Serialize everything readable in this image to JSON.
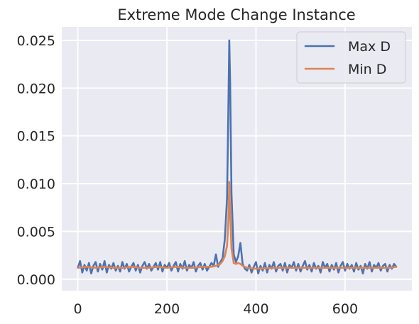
{
  "chart_data": {
    "type": "line",
    "title": "Extreme Mode Change Instance",
    "xlabel": "",
    "ylabel": "",
    "xlim": [
      -36,
      750
    ],
    "ylim": [
      -0.0012,
      0.0264
    ],
    "xticks": [
      0,
      200,
      400,
      600
    ],
    "xtick_labels": [
      "0",
      "200",
      "400",
      "600"
    ],
    "yticks": [
      0.0,
      0.005,
      0.01,
      0.015,
      0.02,
      0.025
    ],
    "ytick_labels": [
      "0.000",
      "0.005",
      "0.010",
      "0.015",
      "0.020",
      "0.025"
    ],
    "grid": true,
    "legend": "top-right",
    "background": "#eaeaf2",
    "grid_color": "#ffffff",
    "series": [
      {
        "name": "Max D",
        "color": "#4c72b0",
        "x": [
          0,
          5,
          10,
          15,
          20,
          25,
          30,
          35,
          40,
          45,
          50,
          55,
          60,
          65,
          70,
          75,
          80,
          85,
          90,
          95,
          100,
          105,
          110,
          115,
          120,
          125,
          130,
          135,
          140,
          145,
          150,
          155,
          160,
          165,
          170,
          175,
          180,
          185,
          190,
          195,
          200,
          205,
          210,
          215,
          220,
          225,
          230,
          235,
          240,
          245,
          250,
          255,
          260,
          265,
          270,
          275,
          280,
          285,
          290,
          295,
          300,
          305,
          310,
          315,
          320,
          325,
          330,
          335,
          338,
          340,
          342,
          345,
          350,
          355,
          360,
          365,
          370,
          375,
          380,
          385,
          390,
          395,
          400,
          405,
          410,
          415,
          420,
          425,
          430,
          435,
          440,
          445,
          450,
          455,
          460,
          465,
          470,
          475,
          480,
          485,
          490,
          495,
          500,
          505,
          510,
          515,
          520,
          525,
          530,
          535,
          540,
          545,
          550,
          555,
          560,
          565,
          570,
          575,
          580,
          585,
          590,
          595,
          600,
          605,
          610,
          615,
          620,
          625,
          630,
          635,
          640,
          645,
          650,
          655,
          660,
          665,
          670,
          675,
          680,
          685,
          690,
          695,
          700,
          705,
          710,
          715
        ],
        "y": [
          0.0012,
          0.0019,
          0.0007,
          0.0015,
          0.0009,
          0.0017,
          0.0006,
          0.0014,
          0.0018,
          0.0008,
          0.0016,
          0.001,
          0.0019,
          0.0007,
          0.0015,
          0.0011,
          0.0017,
          0.0009,
          0.0014,
          0.0008,
          0.0018,
          0.0011,
          0.0016,
          0.0008,
          0.0013,
          0.0017,
          0.0009,
          0.0015,
          0.0007,
          0.0014,
          0.0018,
          0.0011,
          0.0016,
          0.0009,
          0.0013,
          0.0017,
          0.001,
          0.0018,
          0.0008,
          0.0015,
          0.0012,
          0.0017,
          0.0009,
          0.0014,
          0.0018,
          0.0008,
          0.0016,
          0.0011,
          0.0019,
          0.0009,
          0.0015,
          0.0012,
          0.0018,
          0.0008,
          0.0014,
          0.0017,
          0.001,
          0.0016,
          0.0009,
          0.0013,
          0.0017,
          0.0014,
          0.0026,
          0.0013,
          0.0018,
          0.0022,
          0.0042,
          0.0085,
          0.018,
          0.025,
          0.0205,
          0.009,
          0.0026,
          0.0018,
          0.0024,
          0.0038,
          0.0016,
          0.0011,
          0.0009,
          0.0015,
          0.0007,
          0.0013,
          0.0018,
          0.0006,
          0.0014,
          0.0009,
          0.0017,
          0.0007,
          0.0015,
          0.0011,
          0.0018,
          0.0008,
          0.0014,
          0.0016,
          0.0009,
          0.0017,
          0.0007,
          0.0015,
          0.0012,
          0.0018,
          0.0009,
          0.0016,
          0.0008,
          0.0014,
          0.0019,
          0.001,
          0.0015,
          0.0008,
          0.0017,
          0.0011,
          0.0014,
          0.0007,
          0.0018,
          0.0012,
          0.0016,
          0.0008,
          0.0015,
          0.001,
          0.0017,
          0.0007,
          0.0014,
          0.0018,
          0.0009,
          0.0016,
          0.0011,
          0.0015,
          0.0008,
          0.0017,
          0.001,
          0.0014,
          0.0006,
          0.0016,
          0.0011,
          0.0018,
          0.0008,
          0.0015,
          0.0012,
          0.0017,
          0.0009,
          0.0014,
          0.0016,
          0.0008,
          0.0015,
          0.0011,
          0.0016,
          0.0013
        ]
      },
      {
        "name": "Min D",
        "color": "#dd8452",
        "x": [
          0,
          20,
          40,
          60,
          80,
          100,
          120,
          140,
          160,
          180,
          200,
          220,
          240,
          260,
          280,
          300,
          310,
          320,
          325,
          330,
          335,
          338,
          340,
          342,
          345,
          350,
          355,
          360,
          365,
          370,
          380,
          400,
          450,
          500,
          550,
          600,
          650,
          700,
          715
        ],
        "y": [
          0.0012,
          0.0013,
          0.0012,
          0.0013,
          0.0012,
          0.0012,
          0.0013,
          0.0012,
          0.0012,
          0.0013,
          0.0012,
          0.0013,
          0.0012,
          0.0012,
          0.0013,
          0.0013,
          0.0014,
          0.0016,
          0.0019,
          0.0024,
          0.0035,
          0.0062,
          0.0102,
          0.0068,
          0.0032,
          0.0017,
          0.0016,
          0.0017,
          0.0016,
          0.0014,
          0.0012,
          0.0011,
          0.0012,
          0.0012,
          0.0012,
          0.0012,
          0.0012,
          0.0012,
          0.0013
        ]
      }
    ]
  }
}
